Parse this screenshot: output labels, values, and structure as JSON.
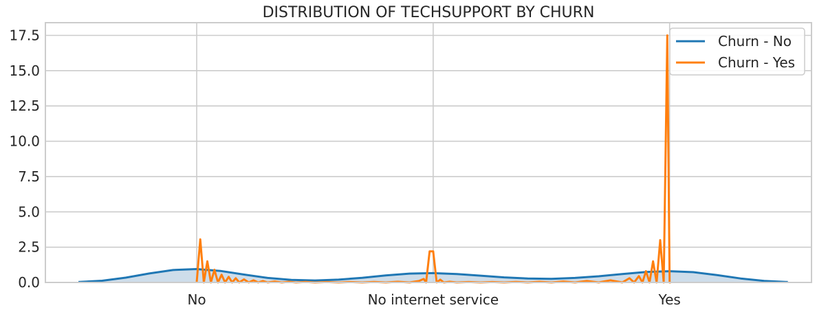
{
  "chart_data": {
    "type": "line",
    "title": "DISTRIBUTION OF TECHSUPPORT BY CHURN",
    "xlabel": "",
    "ylabel": "",
    "categories": [
      "No",
      "No internet service",
      "Yes"
    ],
    "category_positions": [
      0,
      1,
      2
    ],
    "xlim": [
      -0.64,
      2.6
    ],
    "ylim": [
      0,
      18.4
    ],
    "yticks": [
      0.0,
      2.5,
      5.0,
      7.5,
      10.0,
      12.5,
      15.0,
      17.5
    ],
    "ytick_labels": [
      "0.0",
      "2.5",
      "5.0",
      "7.5",
      "10.0",
      "12.5",
      "15.0",
      "17.5"
    ],
    "grid": true,
    "legend_position": "top-right",
    "colors": {
      "churn_no": "#1f77b4",
      "churn_yes": "#ff7f0e",
      "fill_no": "#c6d7e6"
    },
    "series": [
      {
        "name": "Churn - No",
        "color": "#1f77b4",
        "filled": true,
        "x": [
          -0.5,
          -0.4,
          -0.3,
          -0.2,
          -0.1,
          0.0,
          0.1,
          0.2,
          0.3,
          0.4,
          0.5,
          0.6,
          0.7,
          0.8,
          0.9,
          1.0,
          1.1,
          1.2,
          1.3,
          1.4,
          1.5,
          1.6,
          1.7,
          1.8,
          1.9,
          2.0,
          2.1,
          2.2,
          2.3,
          2.4,
          2.5
        ],
        "y": [
          0.03,
          0.12,
          0.34,
          0.64,
          0.88,
          0.95,
          0.82,
          0.56,
          0.32,
          0.18,
          0.14,
          0.2,
          0.33,
          0.5,
          0.63,
          0.66,
          0.6,
          0.48,
          0.36,
          0.28,
          0.26,
          0.32,
          0.44,
          0.6,
          0.74,
          0.8,
          0.73,
          0.52,
          0.28,
          0.11,
          0.03
        ]
      },
      {
        "name": "Churn - Yes",
        "color": "#ff7f0e",
        "filled": false,
        "x": [
          0.0,
          0.015,
          0.03,
          0.045,
          0.06,
          0.075,
          0.09,
          0.105,
          0.12,
          0.135,
          0.15,
          0.165,
          0.18,
          0.2,
          0.22,
          0.24,
          0.26,
          0.28,
          0.3,
          0.33,
          0.36,
          0.39,
          0.42,
          0.46,
          0.5,
          0.55,
          0.6,
          0.65,
          0.7,
          0.75,
          0.8,
          0.85,
          0.9,
          0.94,
          0.96,
          0.97,
          0.985,
          1.0,
          1.015,
          1.03,
          1.045,
          1.07,
          1.1,
          1.15,
          1.2,
          1.25,
          1.3,
          1.35,
          1.4,
          1.45,
          1.5,
          1.55,
          1.6,
          1.65,
          1.7,
          1.75,
          1.8,
          1.83,
          1.85,
          1.87,
          1.885,
          1.9,
          1.915,
          1.93,
          1.945,
          1.96,
          1.975,
          1.99,
          2.0,
          2.005
        ],
        "y": [
          0.0,
          3.05,
          0.0,
          1.5,
          0.0,
          0.9,
          0.0,
          0.55,
          0.0,
          0.4,
          0.0,
          0.3,
          0.0,
          0.22,
          0.0,
          0.15,
          0.0,
          0.1,
          0.0,
          0.07,
          0.0,
          0.05,
          0.0,
          0.04,
          0.0,
          0.03,
          0.0,
          0.03,
          0.0,
          0.04,
          0.0,
          0.05,
          0.0,
          0.1,
          0.25,
          0.0,
          2.2,
          2.2,
          0.0,
          0.2,
          0.0,
          0.05,
          0.0,
          0.03,
          0.0,
          0.03,
          0.0,
          0.04,
          0.0,
          0.05,
          0.0,
          0.07,
          0.0,
          0.1,
          0.0,
          0.15,
          0.0,
          0.3,
          0.0,
          0.45,
          0.0,
          0.8,
          0.0,
          1.5,
          0.0,
          3.0,
          0.0,
          17.5,
          0.0,
          0.0
        ]
      }
    ]
  }
}
